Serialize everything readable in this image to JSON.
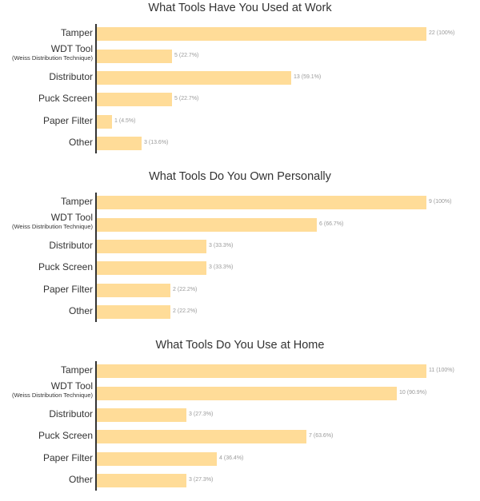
{
  "colors": {
    "bar": "#ffdc98",
    "axis": "#333333",
    "value_label": "#9a9a9a",
    "text": "#333333"
  },
  "chart_data": [
    {
      "type": "bar",
      "orientation": "horizontal",
      "title": "What Tools Have You Used at Work",
      "categories": [
        "Tamper",
        "WDT Tool",
        "Distributor",
        "Puck Screen",
        "Paper Filter",
        "Other"
      ],
      "category_sublabels": [
        "",
        "(Weiss Distribution Technique)",
        "",
        "",
        "",
        ""
      ],
      "values": [
        22,
        5,
        13,
        5,
        1,
        3
      ],
      "percent_labels": [
        "(100%)",
        "(22.7%)",
        "(59.1%)",
        "(22.7%)",
        "(4.5%)",
        "(13.6%)"
      ],
      "xlim": [
        0,
        22
      ],
      "grid": false,
      "legend": "none"
    },
    {
      "type": "bar",
      "orientation": "horizontal",
      "title": "What Tools Do You Own Personally",
      "categories": [
        "Tamper",
        "WDT Tool",
        "Distributor",
        "Puck Screen",
        "Paper Filter",
        "Other"
      ],
      "category_sublabels": [
        "",
        "(Weiss Distribution Technique)",
        "",
        "",
        "",
        ""
      ],
      "values": [
        9,
        6,
        3,
        3,
        2,
        2
      ],
      "percent_labels": [
        "(100%)",
        "(66.7%)",
        "(33.3%)",
        "(33.3%)",
        "(22.2%)",
        "(22.2%)"
      ],
      "xlim": [
        0,
        9
      ],
      "grid": false,
      "legend": "none"
    },
    {
      "type": "bar",
      "orientation": "horizontal",
      "title": "What Tools Do You Use at Home",
      "categories": [
        "Tamper",
        "WDT Tool",
        "Distributor",
        "Puck Screen",
        "Paper Filter",
        "Other"
      ],
      "category_sublabels": [
        "",
        "(Weiss Distribution Technique)",
        "",
        "",
        "",
        ""
      ],
      "values": [
        11,
        10,
        3,
        7,
        4,
        3
      ],
      "percent_labels": [
        "(100%)",
        "(90.9%)",
        "(27.3%)",
        "(63.6%)",
        "(36.4%)",
        "(27.3%)"
      ],
      "xlim": [
        0,
        11
      ],
      "grid": false,
      "legend": "none"
    }
  ]
}
